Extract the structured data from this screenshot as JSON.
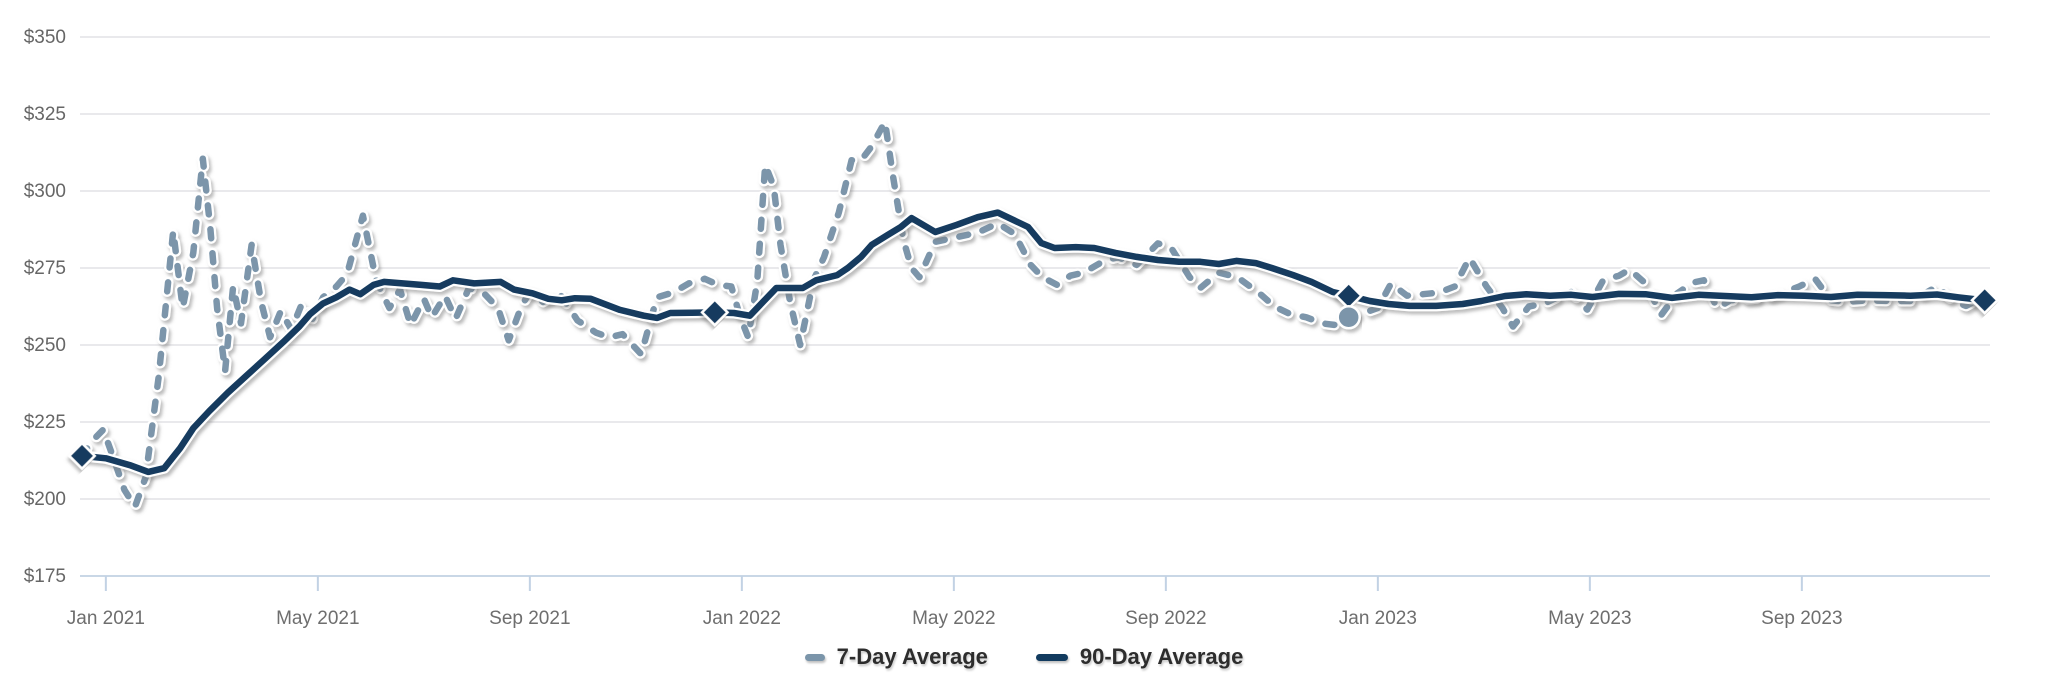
{
  "chart_data": {
    "type": "line",
    "title": "",
    "xlabel": "",
    "ylabel": "",
    "y_axis": {
      "range": [
        175,
        350
      ],
      "tick_prefix": "$",
      "ticks": [
        {
          "v": 350,
          "label": "$350"
        },
        {
          "v": 325,
          "label": "$325"
        },
        {
          "v": 300,
          "label": "$300"
        },
        {
          "v": 275,
          "label": "$275"
        },
        {
          "v": 250,
          "label": "$250"
        },
        {
          "v": 225,
          "label": "$225"
        },
        {
          "v": 200,
          "label": "$200"
        },
        {
          "v": 175,
          "label": "$175"
        }
      ]
    },
    "x_axis": {
      "unit": "months_since_jan_2021",
      "range": [
        0,
        35.9
      ],
      "ticks": [
        {
          "t": 0.45,
          "label": "Jan 2021"
        },
        {
          "t": 4.45,
          "label": "May 2021"
        },
        {
          "t": 8.45,
          "label": "Sep 2021"
        },
        {
          "t": 12.45,
          "label": "Jan 2022"
        },
        {
          "t": 16.45,
          "label": "May 2022"
        },
        {
          "t": 20.45,
          "label": "Sep 2022"
        },
        {
          "t": 24.45,
          "label": "Jan 2023"
        },
        {
          "t": 28.45,
          "label": "May 2023"
        },
        {
          "t": 32.45,
          "label": "Sep 2023"
        }
      ]
    },
    "grid": true,
    "legend_position": "bottom-center",
    "colors": {
      "seven_day": "#7b95aa",
      "ninety_day": "#123b5f",
      "gridline": "#e2e2e5",
      "baseline": "#c9d7e6",
      "tick": "#c2d2e4",
      "y_label_text": "#666666",
      "x_label_text": "#6e6e6e",
      "legend_text": "#2d2d2d",
      "background": "#ffffff"
    },
    "series": [
      {
        "name": "7-Day Average",
        "style": "dashed",
        "color": "#7b95aa",
        "points": [
          [
            0.0,
            214
          ],
          [
            0.2,
            219
          ],
          [
            0.4,
            222.5
          ],
          [
            0.6,
            213
          ],
          [
            0.8,
            203
          ],
          [
            1.0,
            197.5
          ],
          [
            1.2,
            207
          ],
          [
            1.45,
            240
          ],
          [
            1.72,
            287
          ],
          [
            1.9,
            262
          ],
          [
            2.1,
            280
          ],
          [
            2.28,
            310.5
          ],
          [
            2.42,
            288
          ],
          [
            2.55,
            262
          ],
          [
            2.7,
            241.5
          ],
          [
            2.85,
            269
          ],
          [
            3.0,
            257
          ],
          [
            3.2,
            282.5
          ],
          [
            3.38,
            264
          ],
          [
            3.55,
            252.5
          ],
          [
            3.75,
            261
          ],
          [
            3.95,
            255
          ],
          [
            4.15,
            263.5
          ],
          [
            4.35,
            258.5
          ],
          [
            4.55,
            265.5
          ],
          [
            4.8,
            269
          ],
          [
            5.0,
            273
          ],
          [
            5.3,
            292
          ],
          [
            5.55,
            271
          ],
          [
            5.8,
            262
          ],
          [
            6.0,
            268
          ],
          [
            6.2,
            256.5
          ],
          [
            6.45,
            265
          ],
          [
            6.6,
            259
          ],
          [
            6.85,
            266
          ],
          [
            7.05,
            258.5
          ],
          [
            7.3,
            268.5
          ],
          [
            7.6,
            266.5
          ],
          [
            7.85,
            262
          ],
          [
            8.05,
            251.5
          ],
          [
            8.3,
            263
          ],
          [
            8.45,
            267
          ],
          [
            8.7,
            264
          ],
          [
            9.0,
            267
          ],
          [
            9.35,
            258
          ],
          [
            9.7,
            254
          ],
          [
            9.95,
            252.5
          ],
          [
            10.2,
            253.5
          ],
          [
            10.55,
            247
          ],
          [
            10.85,
            265.5
          ],
          [
            11.15,
            267
          ],
          [
            11.45,
            270
          ],
          [
            11.75,
            271.5
          ],
          [
            12.0,
            269.5
          ],
          [
            12.25,
            269
          ],
          [
            12.42,
            259
          ],
          [
            12.57,
            252.5
          ],
          [
            12.74,
            270.5
          ],
          [
            12.89,
            308.5
          ],
          [
            13.05,
            301.5
          ],
          [
            13.18,
            282.5
          ],
          [
            13.36,
            264
          ],
          [
            13.55,
            250
          ],
          [
            13.8,
            271
          ],
          [
            14.0,
            278.5
          ],
          [
            14.28,
            293
          ],
          [
            14.52,
            310
          ],
          [
            14.7,
            310
          ],
          [
            14.9,
            314.5
          ],
          [
            15.15,
            322.5
          ],
          [
            15.3,
            305
          ],
          [
            15.5,
            284
          ],
          [
            15.65,
            275
          ],
          [
            15.8,
            272
          ],
          [
            16.1,
            283.5
          ],
          [
            16.5,
            285
          ],
          [
            16.9,
            286.5
          ],
          [
            17.28,
            289.5
          ],
          [
            17.6,
            286
          ],
          [
            17.9,
            276
          ],
          [
            18.12,
            272
          ],
          [
            18.4,
            269.5
          ],
          [
            18.65,
            272.5
          ],
          [
            18.9,
            273.5
          ],
          [
            19.3,
            277.5
          ],
          [
            19.55,
            278.5
          ],
          [
            19.9,
            276
          ],
          [
            20.3,
            283
          ],
          [
            20.55,
            281.5
          ],
          [
            20.9,
            272
          ],
          [
            21.1,
            268.5
          ],
          [
            21.45,
            273.5
          ],
          [
            21.8,
            272
          ],
          [
            22.2,
            267
          ],
          [
            22.5,
            262.5
          ],
          [
            22.8,
            260
          ],
          [
            23.1,
            259
          ],
          [
            23.4,
            257
          ],
          [
            23.65,
            256.5
          ],
          [
            23.9,
            259
          ],
          [
            24.2,
            260.5
          ],
          [
            24.45,
            262
          ],
          [
            24.7,
            270
          ],
          [
            25.0,
            266
          ],
          [
            25.3,
            266.5
          ],
          [
            25.6,
            267
          ],
          [
            25.9,
            269
          ],
          [
            26.18,
            278.3
          ],
          [
            26.5,
            269
          ],
          [
            26.8,
            262
          ],
          [
            27.0,
            256
          ],
          [
            27.3,
            262.5
          ],
          [
            27.6,
            263.5
          ],
          [
            27.9,
            266
          ],
          [
            28.1,
            267.2
          ],
          [
            28.4,
            261.5
          ],
          [
            28.7,
            271
          ],
          [
            29.0,
            272.5
          ],
          [
            29.2,
            274.5
          ],
          [
            29.5,
            270
          ],
          [
            29.8,
            259.8
          ],
          [
            30.1,
            266.8
          ],
          [
            30.4,
            270.3
          ],
          [
            30.6,
            271
          ],
          [
            30.85,
            262
          ],
          [
            31.1,
            264.5
          ],
          [
            31.5,
            265
          ],
          [
            31.8,
            265.5
          ],
          [
            32.1,
            267
          ],
          [
            32.4,
            269
          ],
          [
            32.7,
            271.5
          ],
          [
            33.0,
            264.5
          ],
          [
            33.3,
            264
          ],
          [
            33.7,
            264.5
          ],
          [
            34.1,
            264.3
          ],
          [
            34.5,
            264.3
          ],
          [
            34.8,
            267
          ],
          [
            35.0,
            269
          ],
          [
            35.3,
            264.3
          ],
          [
            35.55,
            262.7
          ],
          [
            35.8,
            265
          ],
          [
            35.9,
            264.5
          ]
        ]
      },
      {
        "name": "90-Day Average",
        "style": "solid",
        "color": "#123b5f",
        "points": [
          [
            0.0,
            214
          ],
          [
            0.45,
            213.2
          ],
          [
            0.9,
            211
          ],
          [
            1.25,
            208.8
          ],
          [
            1.55,
            210
          ],
          [
            1.85,
            216.5
          ],
          [
            2.1,
            223
          ],
          [
            2.4,
            228.5
          ],
          [
            2.75,
            234.5
          ],
          [
            3.1,
            240
          ],
          [
            3.45,
            245.5
          ],
          [
            3.8,
            251
          ],
          [
            4.1,
            256
          ],
          [
            4.3,
            260
          ],
          [
            4.55,
            263.5
          ],
          [
            4.8,
            265.5
          ],
          [
            5.05,
            268
          ],
          [
            5.25,
            266.5
          ],
          [
            5.5,
            269.5
          ],
          [
            5.7,
            270.5
          ],
          [
            6.05,
            270
          ],
          [
            6.4,
            269.5
          ],
          [
            6.75,
            269
          ],
          [
            7.0,
            271
          ],
          [
            7.4,
            270
          ],
          [
            7.9,
            270.5
          ],
          [
            8.15,
            268
          ],
          [
            8.5,
            266.8
          ],
          [
            8.8,
            265
          ],
          [
            9.05,
            264.5
          ],
          [
            9.3,
            265.2
          ],
          [
            9.6,
            265
          ],
          [
            10.15,
            261.4
          ],
          [
            10.6,
            259.5
          ],
          [
            10.85,
            258.8
          ],
          [
            11.1,
            260.4
          ],
          [
            11.5,
            260.5
          ],
          [
            11.94,
            260.6
          ],
          [
            12.3,
            260.4
          ],
          [
            12.6,
            259.5
          ],
          [
            13.1,
            268.5
          ],
          [
            13.6,
            268.5
          ],
          [
            13.85,
            271
          ],
          [
            14.25,
            272.7
          ],
          [
            14.45,
            275
          ],
          [
            14.7,
            278.6
          ],
          [
            14.9,
            282.5
          ],
          [
            15.2,
            285.7
          ],
          [
            15.45,
            288.3
          ],
          [
            15.65,
            291.2
          ],
          [
            16.1,
            286.7
          ],
          [
            16.5,
            289
          ],
          [
            16.9,
            291.5
          ],
          [
            17.28,
            293
          ],
          [
            17.85,
            288.3
          ],
          [
            18.1,
            283.1
          ],
          [
            18.35,
            281.5
          ],
          [
            18.75,
            281.8
          ],
          [
            19.1,
            281.5
          ],
          [
            19.5,
            279.9
          ],
          [
            19.9,
            278.6
          ],
          [
            20.3,
            277.6
          ],
          [
            20.7,
            277
          ],
          [
            21.1,
            277
          ],
          [
            21.45,
            276.3
          ],
          [
            21.78,
            277.3
          ],
          [
            22.15,
            276.6
          ],
          [
            22.45,
            275
          ],
          [
            22.85,
            272.7
          ],
          [
            23.2,
            270.5
          ],
          [
            23.6,
            267.2
          ],
          [
            23.9,
            266
          ],
          [
            24.3,
            264.3
          ],
          [
            24.65,
            263.3
          ],
          [
            25.05,
            262.7
          ],
          [
            25.55,
            262.7
          ],
          [
            26.05,
            263.3
          ],
          [
            26.4,
            264.3
          ],
          [
            26.85,
            265.9
          ],
          [
            27.25,
            266.5
          ],
          [
            27.7,
            266
          ],
          [
            28.1,
            266.3
          ],
          [
            28.5,
            265.6
          ],
          [
            29.0,
            266.6
          ],
          [
            29.5,
            266.5
          ],
          [
            30.0,
            265.3
          ],
          [
            30.5,
            266.3
          ],
          [
            31.0,
            265.9
          ],
          [
            31.5,
            265.5
          ],
          [
            32.0,
            266.2
          ],
          [
            32.5,
            266.0
          ],
          [
            33.0,
            265.6
          ],
          [
            33.5,
            266.3
          ],
          [
            34.0,
            266.2
          ],
          [
            34.5,
            266.0
          ],
          [
            35.0,
            266.4
          ],
          [
            35.4,
            265.5
          ],
          [
            35.9,
            264.5
          ]
        ]
      }
    ],
    "markers": [
      {
        "series": "90-Day Average",
        "shape": "diamond",
        "t": 0.0,
        "v": 214,
        "color": "#123b5f"
      },
      {
        "series": "90-Day Average",
        "shape": "diamond",
        "t": 11.94,
        "v": 260.6,
        "color": "#123b5f"
      },
      {
        "series": "90-Day Average",
        "shape": "diamond",
        "t": 23.9,
        "v": 266,
        "color": "#123b5f"
      },
      {
        "series": "7-Day Average",
        "shape": "circle",
        "t": 23.9,
        "v": 259,
        "color": "#7b95aa"
      },
      {
        "series": "90-Day Average",
        "shape": "diamond",
        "t": 35.9,
        "v": 264.5,
        "color": "#123b5f"
      }
    ],
    "legend": [
      {
        "label": "7-Day Average",
        "color": "#7b95aa",
        "dashed": true
      },
      {
        "label": "90-Day Average",
        "color": "#123b5f",
        "dashed": false
      }
    ]
  }
}
